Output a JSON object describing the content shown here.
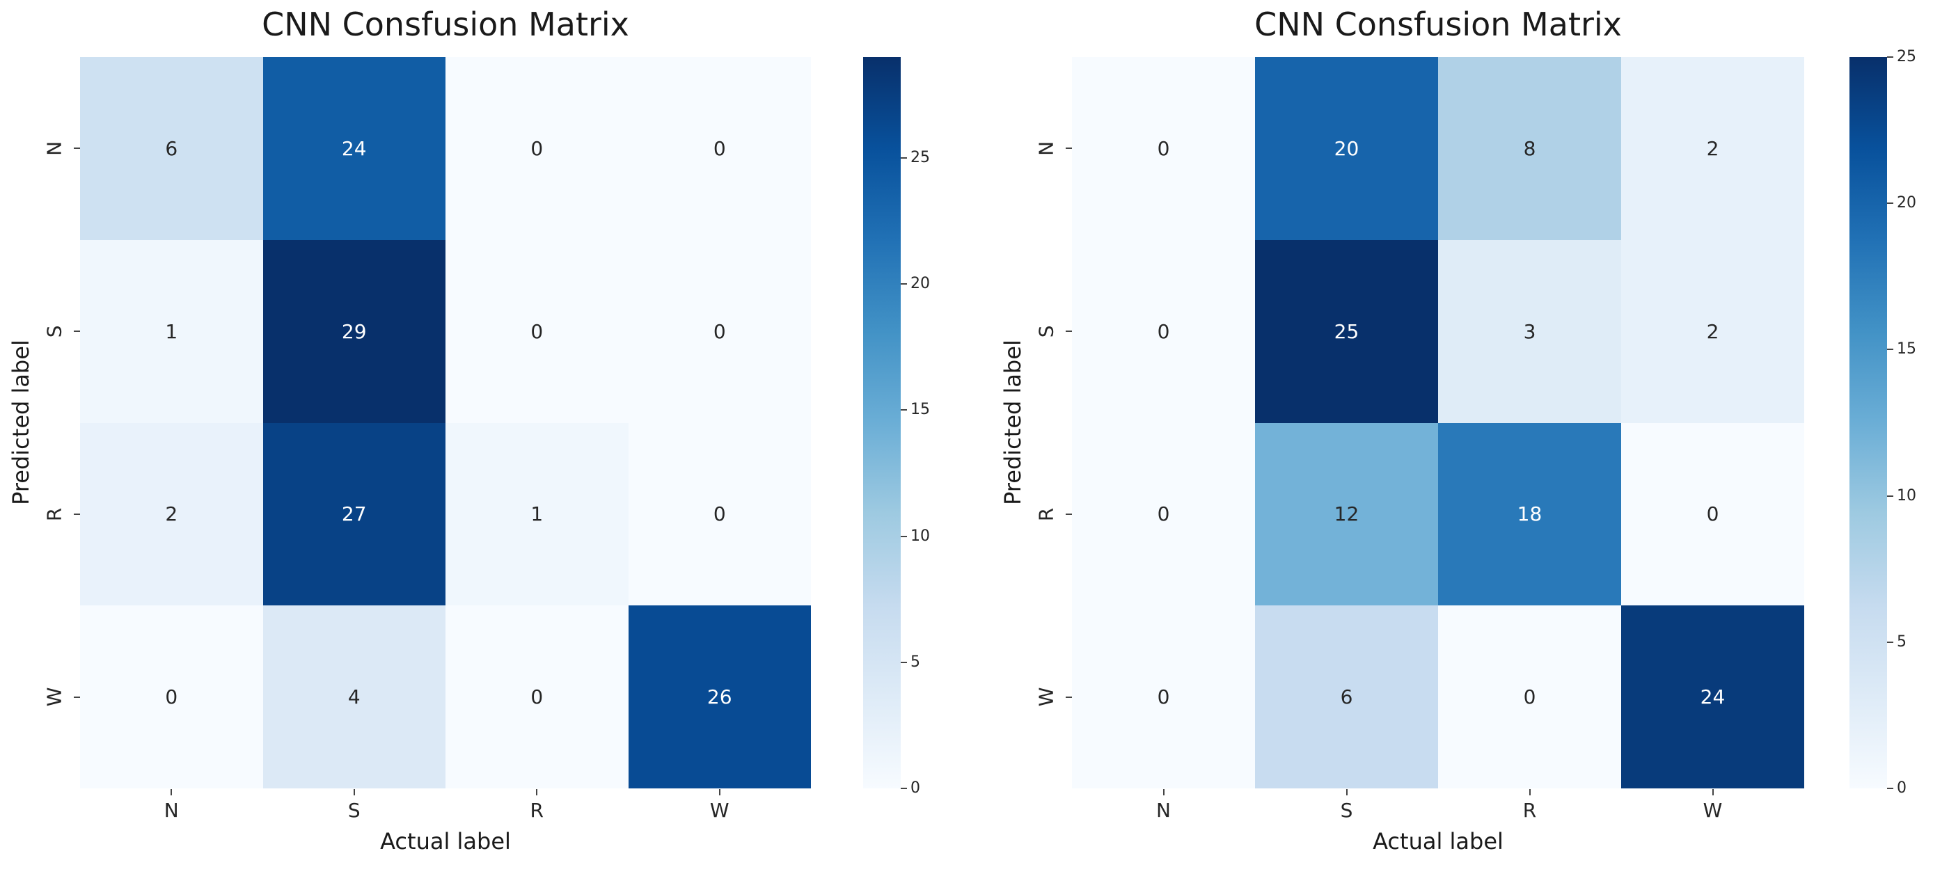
{
  "figure": {
    "background": "#ffffff"
  },
  "colors": {
    "colormap_name": "Blues",
    "blues_stops": [
      "#f7fbff",
      "#deebf7",
      "#c6dbef",
      "#9ecae1",
      "#6baed6",
      "#4292c6",
      "#2171b5",
      "#08519c",
      "#08306b"
    ],
    "annotation_dark": "#262626",
    "annotation_light": "#ffffff",
    "tick_label": "#262626",
    "tick_mark": "#444444",
    "title": "#1a1a1a"
  },
  "chart_data": [
    {
      "type": "heatmap",
      "title": "CNN Consfusion Matrix",
      "xlabel": "Actual label",
      "ylabel": "Predicted label",
      "x_categories": [
        "N",
        "S",
        "R",
        "W"
      ],
      "y_categories": [
        "N",
        "S",
        "R",
        "W"
      ],
      "values": [
        [
          6,
          24,
          0,
          0
        ],
        [
          1,
          29,
          0,
          0
        ],
        [
          2,
          27,
          1,
          0
        ],
        [
          0,
          4,
          0,
          26
        ]
      ],
      "vmin": 0,
      "vmax": 29,
      "colorbar_ticks": [
        0,
        5,
        10,
        15,
        20,
        25
      ],
      "colorbar_position": "right",
      "grid": false
    },
    {
      "type": "heatmap",
      "title": "CNN Consfusion Matrix",
      "xlabel": "Actual label",
      "ylabel": "Predicted label",
      "x_categories": [
        "N",
        "S",
        "R",
        "W"
      ],
      "y_categories": [
        "N",
        "S",
        "R",
        "W"
      ],
      "values": [
        [
          0,
          20,
          8,
          2
        ],
        [
          0,
          25,
          3,
          2
        ],
        [
          0,
          12,
          18,
          0
        ],
        [
          0,
          6,
          0,
          24
        ]
      ],
      "vmin": 0,
      "vmax": 25,
      "colorbar_ticks": [
        0,
        5,
        10,
        15,
        20,
        25
      ],
      "colorbar_position": "right",
      "grid": false
    }
  ]
}
